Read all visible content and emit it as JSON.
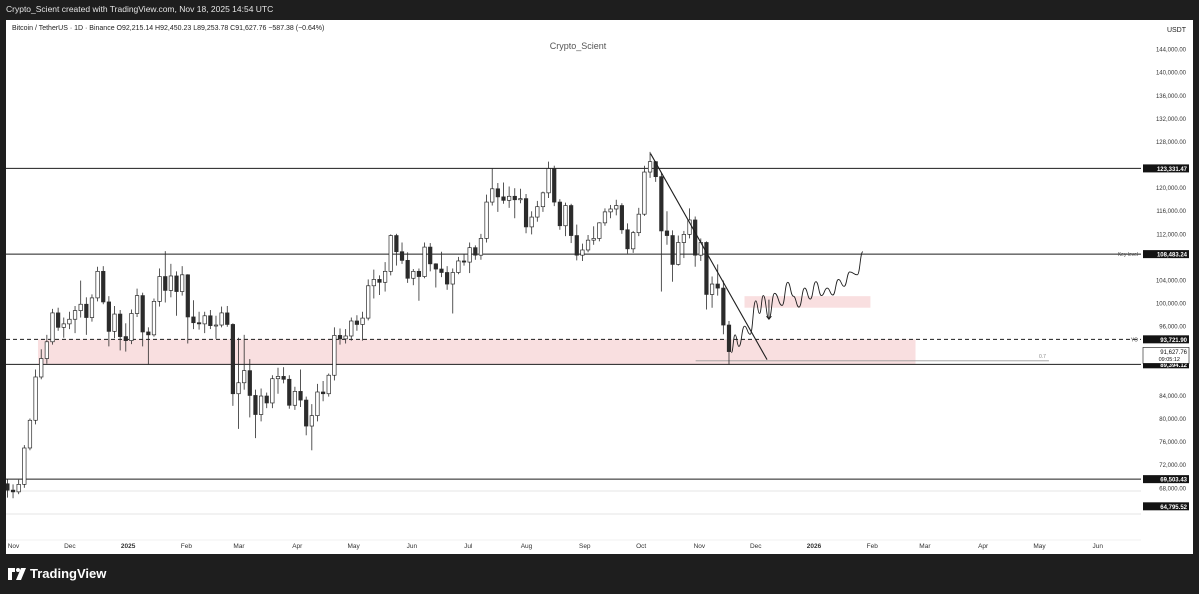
{
  "header": {
    "caption": "Crypto_Scient created with TradingView.com, Nov 18, 2025 14:54 UTC"
  },
  "footer": {
    "brand": "TradingView"
  },
  "chart_data": {
    "type": "candlestick",
    "symbol_line": "Bitcoin / TetherUS · 1D · Binance  O92,215.14  H92,450.23  L89,253.78  C91,627.76  −587.38 (−0.64%)",
    "watermark": "Crypto_Scient",
    "currency": "USDT",
    "ohlc": {
      "open": 92215.14,
      "high": 92450.23,
      "low": 89253.78,
      "close": 91627.76,
      "change": -587.38,
      "change_pct": -0.64
    },
    "y_axis": {
      "ticks": [
        144000,
        140000,
        136000,
        132000,
        128000,
        120000,
        116000,
        112000,
        104000,
        100000,
        96000,
        84000,
        80000,
        76000,
        72000,
        68000
      ],
      "tick_labels": [
        "144,000.00",
        "140,000.00",
        "136,000.00",
        "132,000.00",
        "128,000.00",
        "120,000.00",
        "116,000.00",
        "112,000.00",
        "104,000.00",
        "100,000.00",
        "96,000.00",
        "84,000.00",
        "80,000.00",
        "76,000.00",
        "72,000.00",
        "68,000.00"
      ],
      "range": [
        60000,
        148000
      ]
    },
    "x_axis": {
      "labels": [
        "Nov",
        "Dec",
        "2025",
        "Feb",
        "Mar",
        "Apr",
        "May",
        "Jun",
        "Jul",
        "Aug",
        "Sep",
        "Oct",
        "Nov",
        "Dec",
        "2026",
        "Feb",
        "Mar",
        "Apr",
        "May",
        "Jun"
      ],
      "label_dates": [
        "2024-11-01",
        "2024-12-01",
        "2025-01-01",
        "2025-02-01",
        "2025-03-01",
        "2025-04-01",
        "2025-05-01",
        "2025-06-01",
        "2025-07-01",
        "2025-08-01",
        "2025-09-01",
        "2025-10-01",
        "2025-11-01",
        "2025-12-01",
        "2026-01-01",
        "2026-02-01",
        "2026-03-01",
        "2026-04-01",
        "2026-05-01",
        "2026-06-01"
      ],
      "range": [
        "2024-10-28",
        "2026-06-24"
      ]
    },
    "levels": [
      {
        "label": "123,331.47",
        "value": 123331.47,
        "style": "solid"
      },
      {
        "label": "108,483.24",
        "value": 108483.24,
        "style": "solid",
        "tag": "Key level"
      },
      {
        "label": "93,721.90",
        "value": 93721.9,
        "style": "dashed",
        "tag": "YO"
      },
      {
        "label": "89,394.12",
        "value": 89394.12,
        "style": "solid"
      },
      {
        "label": "69,503.43",
        "value": 69503.43,
        "style": "solid"
      },
      {
        "label": "64,795.52",
        "value": 64795.52,
        "style": "dark"
      }
    ],
    "last_price": {
      "label": "91,627.76",
      "countdown": "09:05:12",
      "value": 91627.76
    },
    "fib_label": "0.7",
    "zones": [
      {
        "from": "2024-11-14",
        "to": "2026-02-24",
        "low": 89394,
        "high": 93721
      },
      {
        "from": "2025-11-25",
        "to": "2026-01-31",
        "low": 99200,
        "high": 101200
      }
    ],
    "trendline": {
      "from": [
        "2025-10-06",
        125900
      ],
      "to": [
        "2025-12-07",
        90200
      ]
    },
    "support_line": {
      "from": [
        "2025-10-30",
        90000
      ],
      "to": [
        "2026-05-06",
        90000
      ]
    },
    "candles": [
      [
        "2024-10-28",
        68700,
        69500,
        66300,
        67600
      ],
      [
        "2024-10-31",
        67600,
        68600,
        66200,
        67300
      ],
      [
        "2024-11-03",
        67300,
        69400,
        66900,
        68600
      ],
      [
        "2024-11-06",
        68600,
        75400,
        68000,
        74900
      ],
      [
        "2024-11-09",
        74900,
        80000,
        74500,
        79700
      ],
      [
        "2024-11-12",
        79700,
        88500,
        79000,
        87200
      ],
      [
        "2024-11-15",
        87200,
        92000,
        86800,
        90400
      ],
      [
        "2024-11-18",
        90400,
        94500,
        89500,
        93300
      ],
      [
        "2024-11-21",
        93300,
        99000,
        92800,
        98300
      ],
      [
        "2024-11-24",
        98300,
        99200,
        95200,
        95800
      ],
      [
        "2024-11-27",
        95800,
        97500,
        94000,
        96400
      ],
      [
        "2024-11-30",
        96400,
        98500,
        95500,
        97200
      ],
      [
        "2024-12-03",
        97200,
        99500,
        94800,
        98700
      ],
      [
        "2024-12-06",
        98700,
        103900,
        97500,
        99800
      ],
      [
        "2024-12-09",
        99800,
        101000,
        94500,
        97500
      ],
      [
        "2024-12-12",
        97500,
        101500,
        96800,
        100900
      ],
      [
        "2024-12-15",
        100900,
        106300,
        100300,
        105500
      ],
      [
        "2024-12-18",
        105500,
        106400,
        99800,
        100200
      ],
      [
        "2024-12-21",
        100200,
        101200,
        92500,
        95100
      ],
      [
        "2024-12-24",
        95100,
        99500,
        93900,
        98100
      ],
      [
        "2024-12-27",
        98100,
        98800,
        91800,
        94200
      ],
      [
        "2024-12-30",
        94200,
        96500,
        91600,
        93500
      ],
      [
        "2025-01-02",
        93500,
        98900,
        92900,
        98200
      ],
      [
        "2025-01-05",
        98200,
        102500,
        97600,
        101300
      ],
      [
        "2025-01-08",
        101300,
        101800,
        92500,
        95000
      ],
      [
        "2025-01-11",
        95000,
        95800,
        89300,
        94500
      ],
      [
        "2025-01-14",
        94500,
        100800,
        94200,
        100300
      ],
      [
        "2025-01-17",
        100300,
        106000,
        99400,
        104600
      ],
      [
        "2025-01-20",
        104600,
        109000,
        100100,
        102200
      ],
      [
        "2025-01-23",
        102200,
        106800,
        101000,
        104700
      ],
      [
        "2025-01-26",
        104700,
        105500,
        97800,
        102000
      ],
      [
        "2025-01-29",
        102000,
        106400,
        101300,
        104900
      ],
      [
        "2025-02-01",
        104900,
        105000,
        93000,
        97600
      ],
      [
        "2025-02-04",
        97600,
        100500,
        95500,
        96600
      ],
      [
        "2025-02-07",
        96600,
        98500,
        95400,
        96400
      ],
      [
        "2025-02-10",
        96400,
        98500,
        94800,
        97800
      ],
      [
        "2025-02-13",
        97800,
        98800,
        95500,
        96100
      ],
      [
        "2025-02-16",
        96100,
        97800,
        93800,
        96200
      ],
      [
        "2025-02-19",
        96200,
        99400,
        95800,
        98300
      ],
      [
        "2025-02-22",
        98300,
        99500,
        95900,
        96300
      ],
      [
        "2025-02-25",
        96300,
        96500,
        82200,
        84300
      ],
      [
        "2025-02-28",
        84300,
        94000,
        78200,
        86200
      ],
      [
        "2025-03-03",
        86200,
        94500,
        85000,
        88300
      ],
      [
        "2025-03-06",
        88300,
        90300,
        80200,
        84000
      ],
      [
        "2025-03-09",
        84000,
        85000,
        76600,
        80700
      ],
      [
        "2025-03-12",
        80700,
        85200,
        79500,
        83900
      ],
      [
        "2025-03-15",
        83900,
        84500,
        81800,
        82700
      ],
      [
        "2025-03-18",
        82700,
        87500,
        81800,
        86900
      ],
      [
        "2025-03-21",
        86900,
        88800,
        84300,
        87300
      ],
      [
        "2025-03-24",
        87300,
        88900,
        86100,
        86800
      ],
      [
        "2025-03-27",
        86800,
        87500,
        81700,
        82300
      ],
      [
        "2025-03-30",
        82300,
        85500,
        81500,
        84700
      ],
      [
        "2025-04-02",
        84700,
        88500,
        82000,
        83200
      ],
      [
        "2025-04-05",
        83200,
        83800,
        77100,
        78700
      ],
      [
        "2025-04-08",
        78700,
        82500,
        74500,
        80500
      ],
      [
        "2025-04-11",
        80500,
        86000,
        79500,
        84600
      ],
      [
        "2025-04-14",
        84600,
        86500,
        83000,
        84300
      ],
      [
        "2025-04-17",
        84300,
        87800,
        83800,
        87500
      ],
      [
        "2025-04-20",
        87500,
        95800,
        86600,
        94400
      ],
      [
        "2025-04-23",
        94400,
        95600,
        92800,
        93800
      ],
      [
        "2025-04-26",
        93800,
        95500,
        93000,
        94300
      ],
      [
        "2025-04-29",
        94300,
        97500,
        93500,
        96900
      ],
      [
        "2025-05-02",
        96900,
        97900,
        95200,
        96300
      ],
      [
        "2025-05-05",
        96300,
        98500,
        93500,
        97400
      ],
      [
        "2025-05-08",
        97400,
        104100,
        97000,
        103000
      ],
      [
        "2025-05-11",
        103000,
        105800,
        100800,
        104100
      ],
      [
        "2025-05-14",
        104100,
        104800,
        101400,
        103600
      ],
      [
        "2025-05-17",
        103600,
        107100,
        102000,
        105500
      ],
      [
        "2025-05-20",
        105500,
        111900,
        104800,
        111700
      ],
      [
        "2025-05-23",
        111700,
        112000,
        106500,
        108900
      ],
      [
        "2025-05-26",
        108900,
        110500,
        106800,
        107400
      ],
      [
        "2025-05-29",
        107400,
        108800,
        103500,
        104300
      ],
      [
        "2025-06-01",
        104300,
        105900,
        103100,
        105500
      ],
      [
        "2025-06-04",
        105500,
        106000,
        100400,
        104600
      ],
      [
        "2025-06-07",
        104600,
        110500,
        104300,
        109700
      ],
      [
        "2025-06-10",
        109700,
        110400,
        105500,
        106800
      ],
      [
        "2025-06-13",
        106800,
        106900,
        102700,
        105900
      ],
      [
        "2025-06-16",
        105900,
        108900,
        104500,
        105300
      ],
      [
        "2025-06-19",
        105300,
        106400,
        102300,
        103300
      ],
      [
        "2025-06-22",
        103300,
        106000,
        98200,
        105300
      ],
      [
        "2025-06-25",
        105300,
        108000,
        105000,
        107300
      ],
      [
        "2025-06-28",
        107300,
        108500,
        106500,
        107100
      ],
      [
        "2025-07-01",
        107100,
        110500,
        105200,
        109600
      ],
      [
        "2025-07-04",
        109600,
        110000,
        107500,
        108300
      ],
      [
        "2025-07-07",
        108300,
        112000,
        107500,
        111200
      ],
      [
        "2025-07-10",
        111200,
        118800,
        110500,
        117500
      ],
      [
        "2025-07-13",
        117500,
        123300,
        116900,
        119800
      ],
      [
        "2025-07-16",
        119800,
        120800,
        115800,
        118400
      ],
      [
        "2025-07-19",
        118400,
        120900,
        117200,
        117800
      ],
      [
        "2025-07-22",
        117800,
        120200,
        116500,
        118500
      ],
      [
        "2025-07-25",
        118500,
        119900,
        114700,
        117900
      ],
      [
        "2025-07-28",
        117900,
        119800,
        117300,
        118100
      ],
      [
        "2025-07-31",
        118100,
        118900,
        112100,
        113200
      ],
      [
        "2025-08-03",
        113200,
        115900,
        111900,
        114900
      ],
      [
        "2025-08-06",
        114900,
        117700,
        114100,
        116700
      ],
      [
        "2025-08-09",
        116700,
        119300,
        115800,
        119100
      ],
      [
        "2025-08-12",
        119100,
        124500,
        118200,
        123300
      ],
      [
        "2025-08-15",
        123300,
        123800,
        116800,
        117500
      ],
      [
        "2025-08-18",
        117500,
        118000,
        112700,
        113400
      ],
      [
        "2025-08-21",
        113400,
        117400,
        111600,
        116900
      ],
      [
        "2025-08-24",
        116900,
        117200,
        110400,
        111700
      ],
      [
        "2025-08-27",
        111700,
        113600,
        107400,
        108300
      ],
      [
        "2025-08-30",
        108300,
        110300,
        107300,
        109200
      ],
      [
        "2025-09-02",
        109200,
        111800,
        108800,
        110900
      ],
      [
        "2025-09-05",
        110900,
        113300,
        110100,
        111200
      ],
      [
        "2025-09-08",
        111200,
        114000,
        110700,
        113900
      ],
      [
        "2025-09-11",
        113900,
        116400,
        113400,
        115800
      ],
      [
        "2025-09-14",
        115800,
        117000,
        114700,
        116300
      ],
      [
        "2025-09-17",
        116300,
        117900,
        115200,
        116900
      ],
      [
        "2025-09-20",
        116900,
        117300,
        112000,
        112700
      ],
      [
        "2025-09-23",
        112700,
        113800,
        108600,
        109400
      ],
      [
        "2025-09-26",
        109400,
        112500,
        108700,
        112200
      ],
      [
        "2025-09-29",
        112200,
        116500,
        111600,
        115400
      ],
      [
        "2025-10-02",
        115400,
        123800,
        115100,
        122700
      ],
      [
        "2025-10-05",
        122700,
        126200,
        121700,
        124500
      ],
      [
        "2025-10-08",
        124500,
        124600,
        121000,
        121900
      ],
      [
        "2025-10-11",
        121900,
        122500,
        102000,
        112500
      ],
      [
        "2025-10-14",
        112500,
        115900,
        110100,
        111700
      ],
      [
        "2025-10-17",
        111700,
        112600,
        103700,
        106700
      ],
      [
        "2025-10-20",
        106700,
        111700,
        106500,
        110500
      ],
      [
        "2025-10-23",
        110500,
        112500,
        107800,
        111900
      ],
      [
        "2025-10-26",
        111900,
        116400,
        111200,
        114400
      ],
      [
        "2025-10-29",
        114400,
        115000,
        106300,
        108300
      ],
      [
        "2025-11-01",
        108300,
        111200,
        107300,
        110500
      ],
      [
        "2025-11-04",
        110500,
        110700,
        98900,
        101500
      ],
      [
        "2025-11-07",
        101500,
        104600,
        99200,
        103300
      ],
      [
        "2025-11-10",
        103300,
        106700,
        101300,
        102600
      ],
      [
        "2025-11-13",
        102600,
        103900,
        94600,
        96200
      ],
      [
        "2025-11-16",
        96200,
        96900,
        89300,
        91600
      ]
    ],
    "projection": [
      [
        "2025-11-18",
        91400
      ],
      [
        "2025-11-20",
        94500
      ],
      [
        "2025-11-22",
        92500
      ],
      [
        "2025-11-25",
        96000
      ],
      [
        "2025-11-28",
        94600
      ],
      [
        "2025-12-01",
        100400
      ],
      [
        "2025-12-03",
        98200
      ],
      [
        "2025-12-05",
        101300
      ],
      [
        "2025-12-08",
        97300
      ],
      [
        "2025-12-11",
        101700
      ],
      [
        "2025-12-15",
        99600
      ],
      [
        "2025-12-18",
        103600
      ],
      [
        "2025-12-21",
        101200
      ],
      [
        "2025-12-24",
        99300
      ],
      [
        "2025-12-27",
        102600
      ],
      [
        "2025-12-30",
        100700
      ],
      [
        "2026-01-02",
        103700
      ],
      [
        "2026-01-05",
        101300
      ],
      [
        "2026-01-08",
        102600
      ],
      [
        "2026-01-11",
        101400
      ],
      [
        "2026-01-14",
        104100
      ],
      [
        "2026-01-17",
        102900
      ],
      [
        "2026-01-20",
        105400
      ],
      [
        "2026-01-24",
        104900
      ],
      [
        "2026-01-27",
        108900
      ]
    ],
    "projection_arrow": {
      "at": "2025-12-08",
      "from": 100600,
      "to": 97200
    }
  }
}
